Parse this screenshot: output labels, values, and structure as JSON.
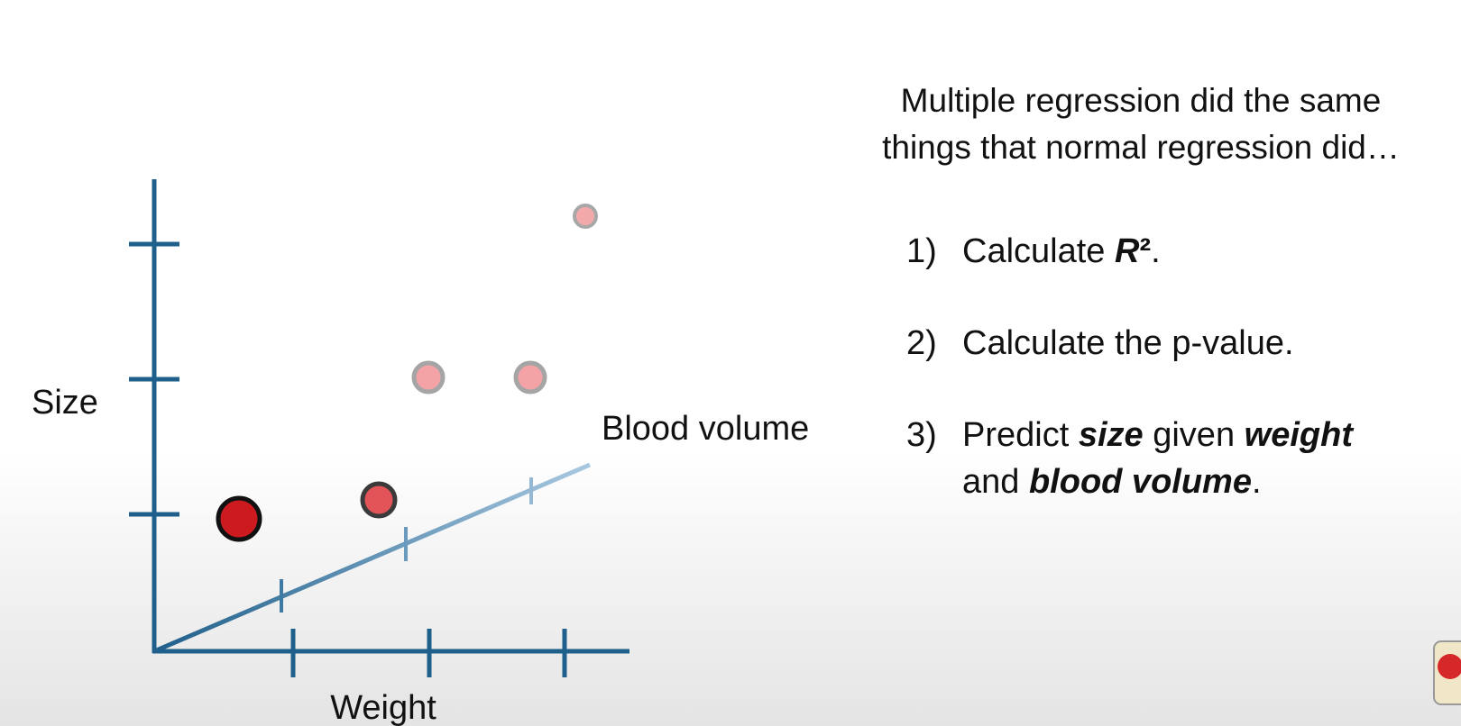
{
  "diagram": {
    "axes": {
      "y_label": "Size",
      "x_label": "Weight",
      "z_label": "Blood volume"
    }
  },
  "text": {
    "heading_lines": [
      "Multiple regression did the same",
      "things that normal regression did…"
    ],
    "items": [
      {
        "number": "1)",
        "parts": [
          "Calculate",
          "R",
          "²",
          "."
        ]
      },
      {
        "number": "2)",
        "parts": [
          "Calculate the p-value."
        ]
      },
      {
        "number": "3)",
        "parts": [
          "Predict",
          "size",
          "given",
          "weight",
          "and",
          "blood volume",
          "."
        ]
      }
    ]
  }
}
